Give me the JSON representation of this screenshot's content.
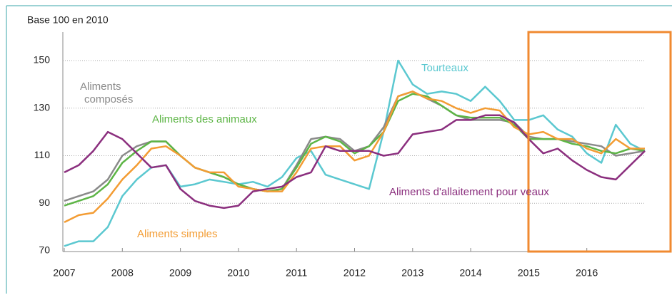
{
  "chart_data": {
    "type": "line",
    "subtitle": "Base 100 en 2010",
    "x": [
      2007,
      2007.25,
      2007.5,
      2007.75,
      2008,
      2008.25,
      2008.5,
      2008.75,
      2009,
      2009.25,
      2009.5,
      2009.75,
      2010,
      2010.25,
      2010.5,
      2010.75,
      2011,
      2011.25,
      2011.5,
      2011.75,
      2012,
      2012.25,
      2012.5,
      2012.75,
      2013,
      2013.25,
      2013.5,
      2013.75,
      2014,
      2014.25,
      2014.5,
      2014.75,
      2015,
      2015.25,
      2015.5,
      2015.75,
      2016,
      2016.25,
      2016.5,
      2016.75,
      2017
    ],
    "series": [
      {
        "name": "Tourteaux",
        "color": "#5bc8d0",
        "values": [
          72,
          74,
          74,
          80,
          93,
          100,
          105,
          106,
          97,
          98,
          100,
          99,
          98,
          99,
          97,
          101,
          109,
          112,
          102,
          100,
          98,
          96,
          120,
          150,
          140,
          136,
          137,
          136,
          133,
          139,
          133,
          125,
          125,
          127,
          121,
          118,
          111,
          107,
          123,
          115,
          112
        ]
      },
      {
        "name": "Aliments composés",
        "color": "#8a8a8a",
        "values": [
          91,
          93,
          95,
          100,
          110,
          114,
          116,
          116,
          110,
          105,
          103,
          101,
          98,
          96,
          95,
          96,
          106,
          117,
          118,
          117,
          112,
          114,
          122,
          135,
          137,
          134,
          131,
          127,
          125,
          125,
          125,
          124,
          118,
          117,
          117,
          116,
          115,
          114,
          110,
          111,
          112
        ]
      },
      {
        "name": "Aliments des animaux",
        "color": "#5db546",
        "values": [
          89,
          91,
          93,
          98,
          107,
          112,
          116,
          116,
          110,
          105,
          103,
          101,
          98,
          96,
          95,
          96,
          105,
          115,
          118,
          116,
          111,
          114,
          120,
          133,
          136,
          135,
          131,
          127,
          126,
          126,
          126,
          123,
          117,
          117,
          117,
          115,
          114,
          112,
          111,
          113,
          112
        ]
      },
      {
        "name": "Aliments simples",
        "color": "#f39c33",
        "values": [
          82,
          85,
          86,
          92,
          100,
          106,
          113,
          114,
          110,
          105,
          103,
          103,
          97,
          96,
          95,
          95,
          103,
          113,
          114,
          114,
          108,
          110,
          120,
          135,
          137,
          134,
          133,
          130,
          128,
          130,
          129,
          122,
          119,
          120,
          117,
          117,
          113,
          111,
          117,
          113,
          113
        ]
      },
      {
        "name": "Aliments d'allaitement pour veaux",
        "color": "#8b2f7e",
        "values": [
          103,
          106,
          112,
          120,
          117,
          111,
          105,
          106,
          96,
          91,
          89,
          88,
          89,
          95,
          96,
          97,
          101,
          103,
          114,
          112,
          112,
          112,
          110,
          111,
          119,
          120,
          121,
          125,
          125,
          127,
          127,
          124,
          117,
          111,
          113,
          108,
          104,
          101,
          100,
          106,
          112
        ]
      }
    ],
    "xlim": [
      2007,
      2017
    ],
    "xticks": [
      2007,
      2008,
      2009,
      2010,
      2011,
      2012,
      2013,
      2014,
      2015,
      2016
    ],
    "ylim": [
      70,
      160
    ],
    "yticks": [
      70,
      90,
      110,
      130,
      150
    ],
    "grid": true
  }
}
